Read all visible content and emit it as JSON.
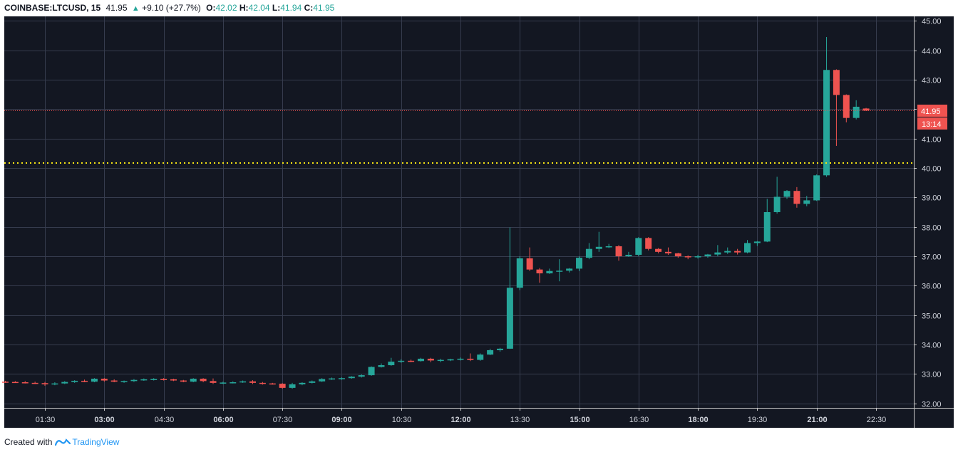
{
  "header": {
    "symbol": "COINBASE:LTCUSD, 15",
    "last": "41.95",
    "change": "+9.10 (+27.7%)",
    "o_label": "O:",
    "o_value": "42.02",
    "h_label": "H:",
    "h_value": "42.04",
    "l_label": "L:",
    "l_value": "41.94",
    "c_label": "C:",
    "c_value": "41.95"
  },
  "footer": {
    "created_with": "Created with",
    "brand": "TradingView"
  },
  "colors": {
    "up": "#26a69a",
    "down": "#ef5350",
    "background": "#131722",
    "grid": "#363c4e",
    "support_line": "#f5e414",
    "price_line": "#ef5350"
  },
  "price_label": {
    "value": "41.95",
    "countdown": "13:14"
  },
  "chart_data": {
    "type": "candlestick",
    "ylim": [
      31.85,
      45.15
    ],
    "y_ticks": [
      "32.00",
      "33.00",
      "34.00",
      "35.00",
      "36.00",
      "37.00",
      "38.00",
      "39.00",
      "40.00",
      "41.00",
      "42.00",
      "43.00",
      "44.00",
      "45.00"
    ],
    "x_ticks": [
      {
        "label": "01:30",
        "bold": false
      },
      {
        "label": "03:00",
        "bold": true
      },
      {
        "label": "04:30",
        "bold": false
      },
      {
        "label": "06:00",
        "bold": true
      },
      {
        "label": "07:30",
        "bold": false
      },
      {
        "label": "09:00",
        "bold": true
      },
      {
        "label": "10:30",
        "bold": false
      },
      {
        "label": "12:00",
        "bold": true
      },
      {
        "label": "13:30",
        "bold": false
      },
      {
        "label": "15:00",
        "bold": true
      },
      {
        "label": "16:30",
        "bold": false
      },
      {
        "label": "18:00",
        "bold": true
      },
      {
        "label": "19:30",
        "bold": false
      },
      {
        "label": "21:00",
        "bold": true
      },
      {
        "label": "22:30",
        "bold": false
      }
    ],
    "start_time": "00:30",
    "interval_minutes": 15,
    "current_price": 41.95,
    "support_level": 40.17,
    "candles": [
      [
        32.74,
        32.77,
        32.7,
        32.73
      ],
      [
        32.73,
        32.76,
        32.7,
        32.72
      ],
      [
        32.72,
        32.76,
        32.68,
        32.7
      ],
      [
        32.7,
        32.74,
        32.66,
        32.69
      ],
      [
        32.69,
        32.73,
        32.6,
        32.65
      ],
      [
        32.65,
        32.72,
        32.62,
        32.68
      ],
      [
        32.68,
        32.76,
        32.66,
        32.73
      ],
      [
        32.73,
        32.79,
        32.7,
        32.77
      ],
      [
        32.77,
        32.81,
        32.72,
        32.74
      ],
      [
        32.74,
        32.86,
        32.72,
        32.84
      ],
      [
        32.84,
        32.86,
        32.74,
        32.78
      ],
      [
        32.78,
        32.82,
        32.72,
        32.74
      ],
      [
        32.74,
        32.78,
        32.7,
        32.76
      ],
      [
        32.76,
        32.83,
        32.73,
        32.8
      ],
      [
        32.8,
        32.85,
        32.77,
        32.82
      ],
      [
        32.82,
        32.86,
        32.78,
        32.83
      ],
      [
        32.83,
        32.86,
        32.78,
        32.82
      ],
      [
        32.82,
        32.84,
        32.76,
        32.78
      ],
      [
        32.78,
        32.8,
        32.72,
        32.74
      ],
      [
        32.74,
        32.86,
        32.72,
        32.84
      ],
      [
        32.84,
        32.86,
        32.72,
        32.76
      ],
      [
        32.76,
        32.85,
        32.66,
        32.7
      ],
      [
        32.7,
        32.74,
        32.66,
        32.71
      ],
      [
        32.71,
        32.75,
        32.68,
        32.72
      ],
      [
        32.72,
        32.78,
        32.7,
        32.75
      ],
      [
        32.75,
        32.79,
        32.66,
        32.7
      ],
      [
        32.7,
        32.73,
        32.64,
        32.68
      ],
      [
        32.68,
        32.7,
        32.64,
        32.67
      ],
      [
        32.67,
        32.69,
        32.5,
        32.53
      ],
      [
        32.53,
        32.7,
        32.5,
        32.65
      ],
      [
        32.65,
        32.72,
        32.62,
        32.7
      ],
      [
        32.7,
        32.78,
        32.68,
        32.75
      ],
      [
        32.75,
        32.86,
        32.73,
        32.83
      ],
      [
        32.83,
        32.88,
        32.8,
        32.85
      ],
      [
        32.85,
        32.89,
        32.8,
        32.86
      ],
      [
        32.86,
        32.93,
        32.84,
        32.91
      ],
      [
        32.91,
        32.99,
        32.88,
        32.96
      ],
      [
        32.96,
        33.26,
        32.94,
        33.24
      ],
      [
        33.24,
        33.36,
        33.22,
        33.3
      ],
      [
        33.3,
        33.55,
        33.28,
        33.42
      ],
      [
        33.42,
        33.5,
        33.38,
        33.45
      ],
      [
        33.45,
        33.49,
        33.4,
        33.44
      ],
      [
        33.44,
        33.55,
        33.42,
        33.52
      ],
      [
        33.52,
        33.55,
        33.4,
        33.46
      ],
      [
        33.46,
        33.52,
        33.4,
        33.48
      ],
      [
        33.48,
        33.52,
        33.44,
        33.5
      ],
      [
        33.5,
        33.56,
        33.46,
        33.52
      ],
      [
        33.52,
        33.7,
        33.44,
        33.48
      ],
      [
        33.48,
        33.7,
        33.45,
        33.66
      ],
      [
        33.66,
        33.86,
        33.64,
        33.81
      ],
      [
        33.81,
        33.89,
        33.76,
        33.86
      ],
      [
        33.86,
        37.98,
        33.85,
        35.93
      ],
      [
        35.93,
        37.0,
        35.85,
        36.93
      ],
      [
        36.93,
        37.3,
        36.5,
        36.55
      ],
      [
        36.55,
        36.6,
        36.1,
        36.42
      ],
      [
        36.42,
        36.58,
        36.4,
        36.5
      ],
      [
        36.5,
        36.9,
        36.15,
        36.51
      ],
      [
        36.51,
        36.6,
        36.45,
        36.58
      ],
      [
        36.58,
        37.0,
        36.5,
        36.95
      ],
      [
        36.95,
        37.45,
        36.9,
        37.25
      ],
      [
        37.25,
        37.83,
        37.15,
        37.32
      ],
      [
        37.32,
        37.42,
        37.28,
        37.34
      ],
      [
        37.34,
        37.38,
        36.85,
        37.0
      ],
      [
        37.0,
        37.15,
        36.98,
        37.05
      ],
      [
        37.05,
        37.65,
        37.0,
        37.62
      ],
      [
        37.62,
        37.65,
        37.2,
        37.25
      ],
      [
        37.25,
        37.28,
        37.1,
        37.15
      ],
      [
        37.15,
        37.3,
        37.05,
        37.1
      ],
      [
        37.1,
        37.12,
        36.95,
        37.0
      ],
      [
        37.0,
        37.03,
        36.9,
        36.97
      ],
      [
        36.97,
        37.05,
        36.92,
        37.0
      ],
      [
        37.0,
        37.08,
        36.95,
        37.06
      ],
      [
        37.06,
        37.38,
        37.0,
        37.13
      ],
      [
        37.13,
        37.3,
        37.08,
        37.18
      ],
      [
        37.18,
        37.25,
        37.06,
        37.13
      ],
      [
        37.13,
        37.55,
        37.1,
        37.45
      ],
      [
        37.45,
        37.52,
        37.35,
        37.5
      ],
      [
        37.5,
        38.95,
        37.48,
        38.5
      ],
      [
        38.5,
        39.7,
        38.45,
        39.02
      ],
      [
        39.02,
        39.25,
        38.95,
        39.22
      ],
      [
        39.22,
        39.35,
        38.65,
        38.78
      ],
      [
        38.78,
        39.05,
        38.7,
        38.9
      ],
      [
        38.9,
        39.78,
        38.88,
        39.75
      ],
      [
        39.75,
        44.45,
        39.7,
        43.33
      ],
      [
        43.33,
        43.35,
        40.75,
        42.48
      ],
      [
        42.48,
        42.5,
        41.55,
        41.7
      ],
      [
        41.7,
        42.3,
        41.65,
        42.08
      ],
      [
        42.02,
        42.04,
        41.94,
        41.95
      ]
    ]
  }
}
